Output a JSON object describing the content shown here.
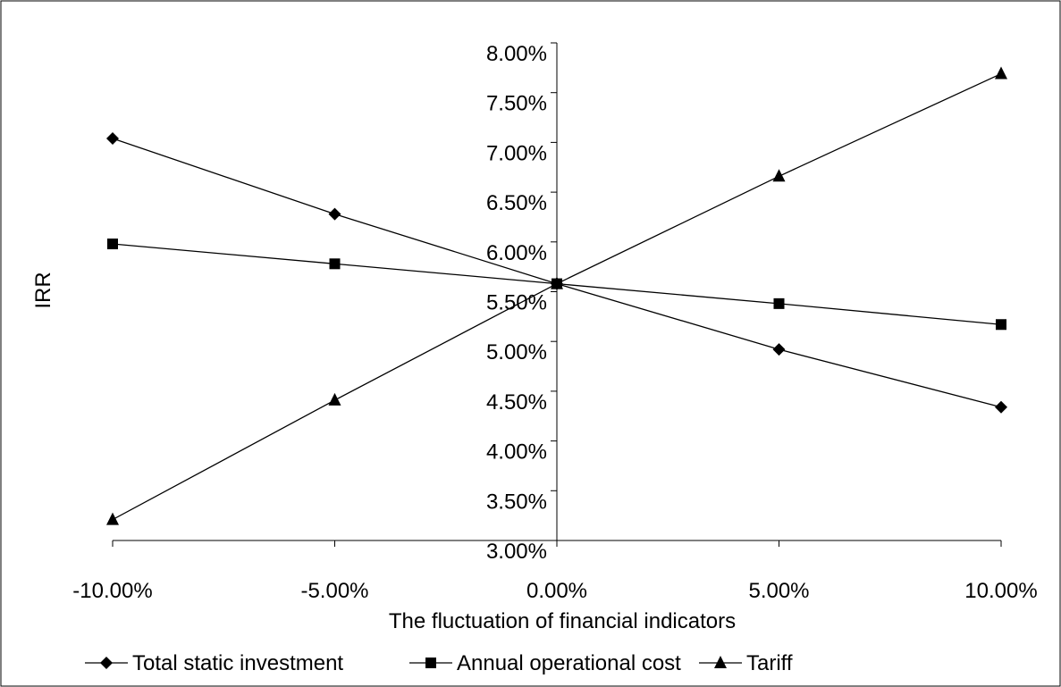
{
  "chart_data": {
    "type": "line",
    "title": "",
    "xlabel": "The fluctuation of financial indicators",
    "ylabel": "IRR",
    "x": [
      -10,
      -5,
      0,
      5,
      10
    ],
    "x_tick_labels": [
      "-10.00%",
      "-5.00%",
      "0.00%",
      "5.00%",
      "10.00%"
    ],
    "y_tick_labels": [
      "3.00%",
      "3.50%",
      "4.00%",
      "4.50%",
      "5.00%",
      "5.50%",
      "6.00%",
      "6.50%",
      "7.00%",
      "7.50%",
      "8.00%"
    ],
    "ylim": [
      3.0,
      8.0
    ],
    "xlim": [
      -10,
      10
    ],
    "grid": false,
    "legend_position": "bottom",
    "series": [
      {
        "name": "Total static investment",
        "marker": "diamond",
        "values": [
          7.04,
          6.28,
          5.58,
          4.92,
          4.34
        ]
      },
      {
        "name": "Annual operational cost",
        "marker": "square",
        "values": [
          5.98,
          5.78,
          5.58,
          5.38,
          5.17
        ]
      },
      {
        "name": "Tariff",
        "marker": "triangle",
        "values": [
          3.21,
          4.41,
          5.58,
          6.66,
          7.69
        ]
      }
    ]
  }
}
